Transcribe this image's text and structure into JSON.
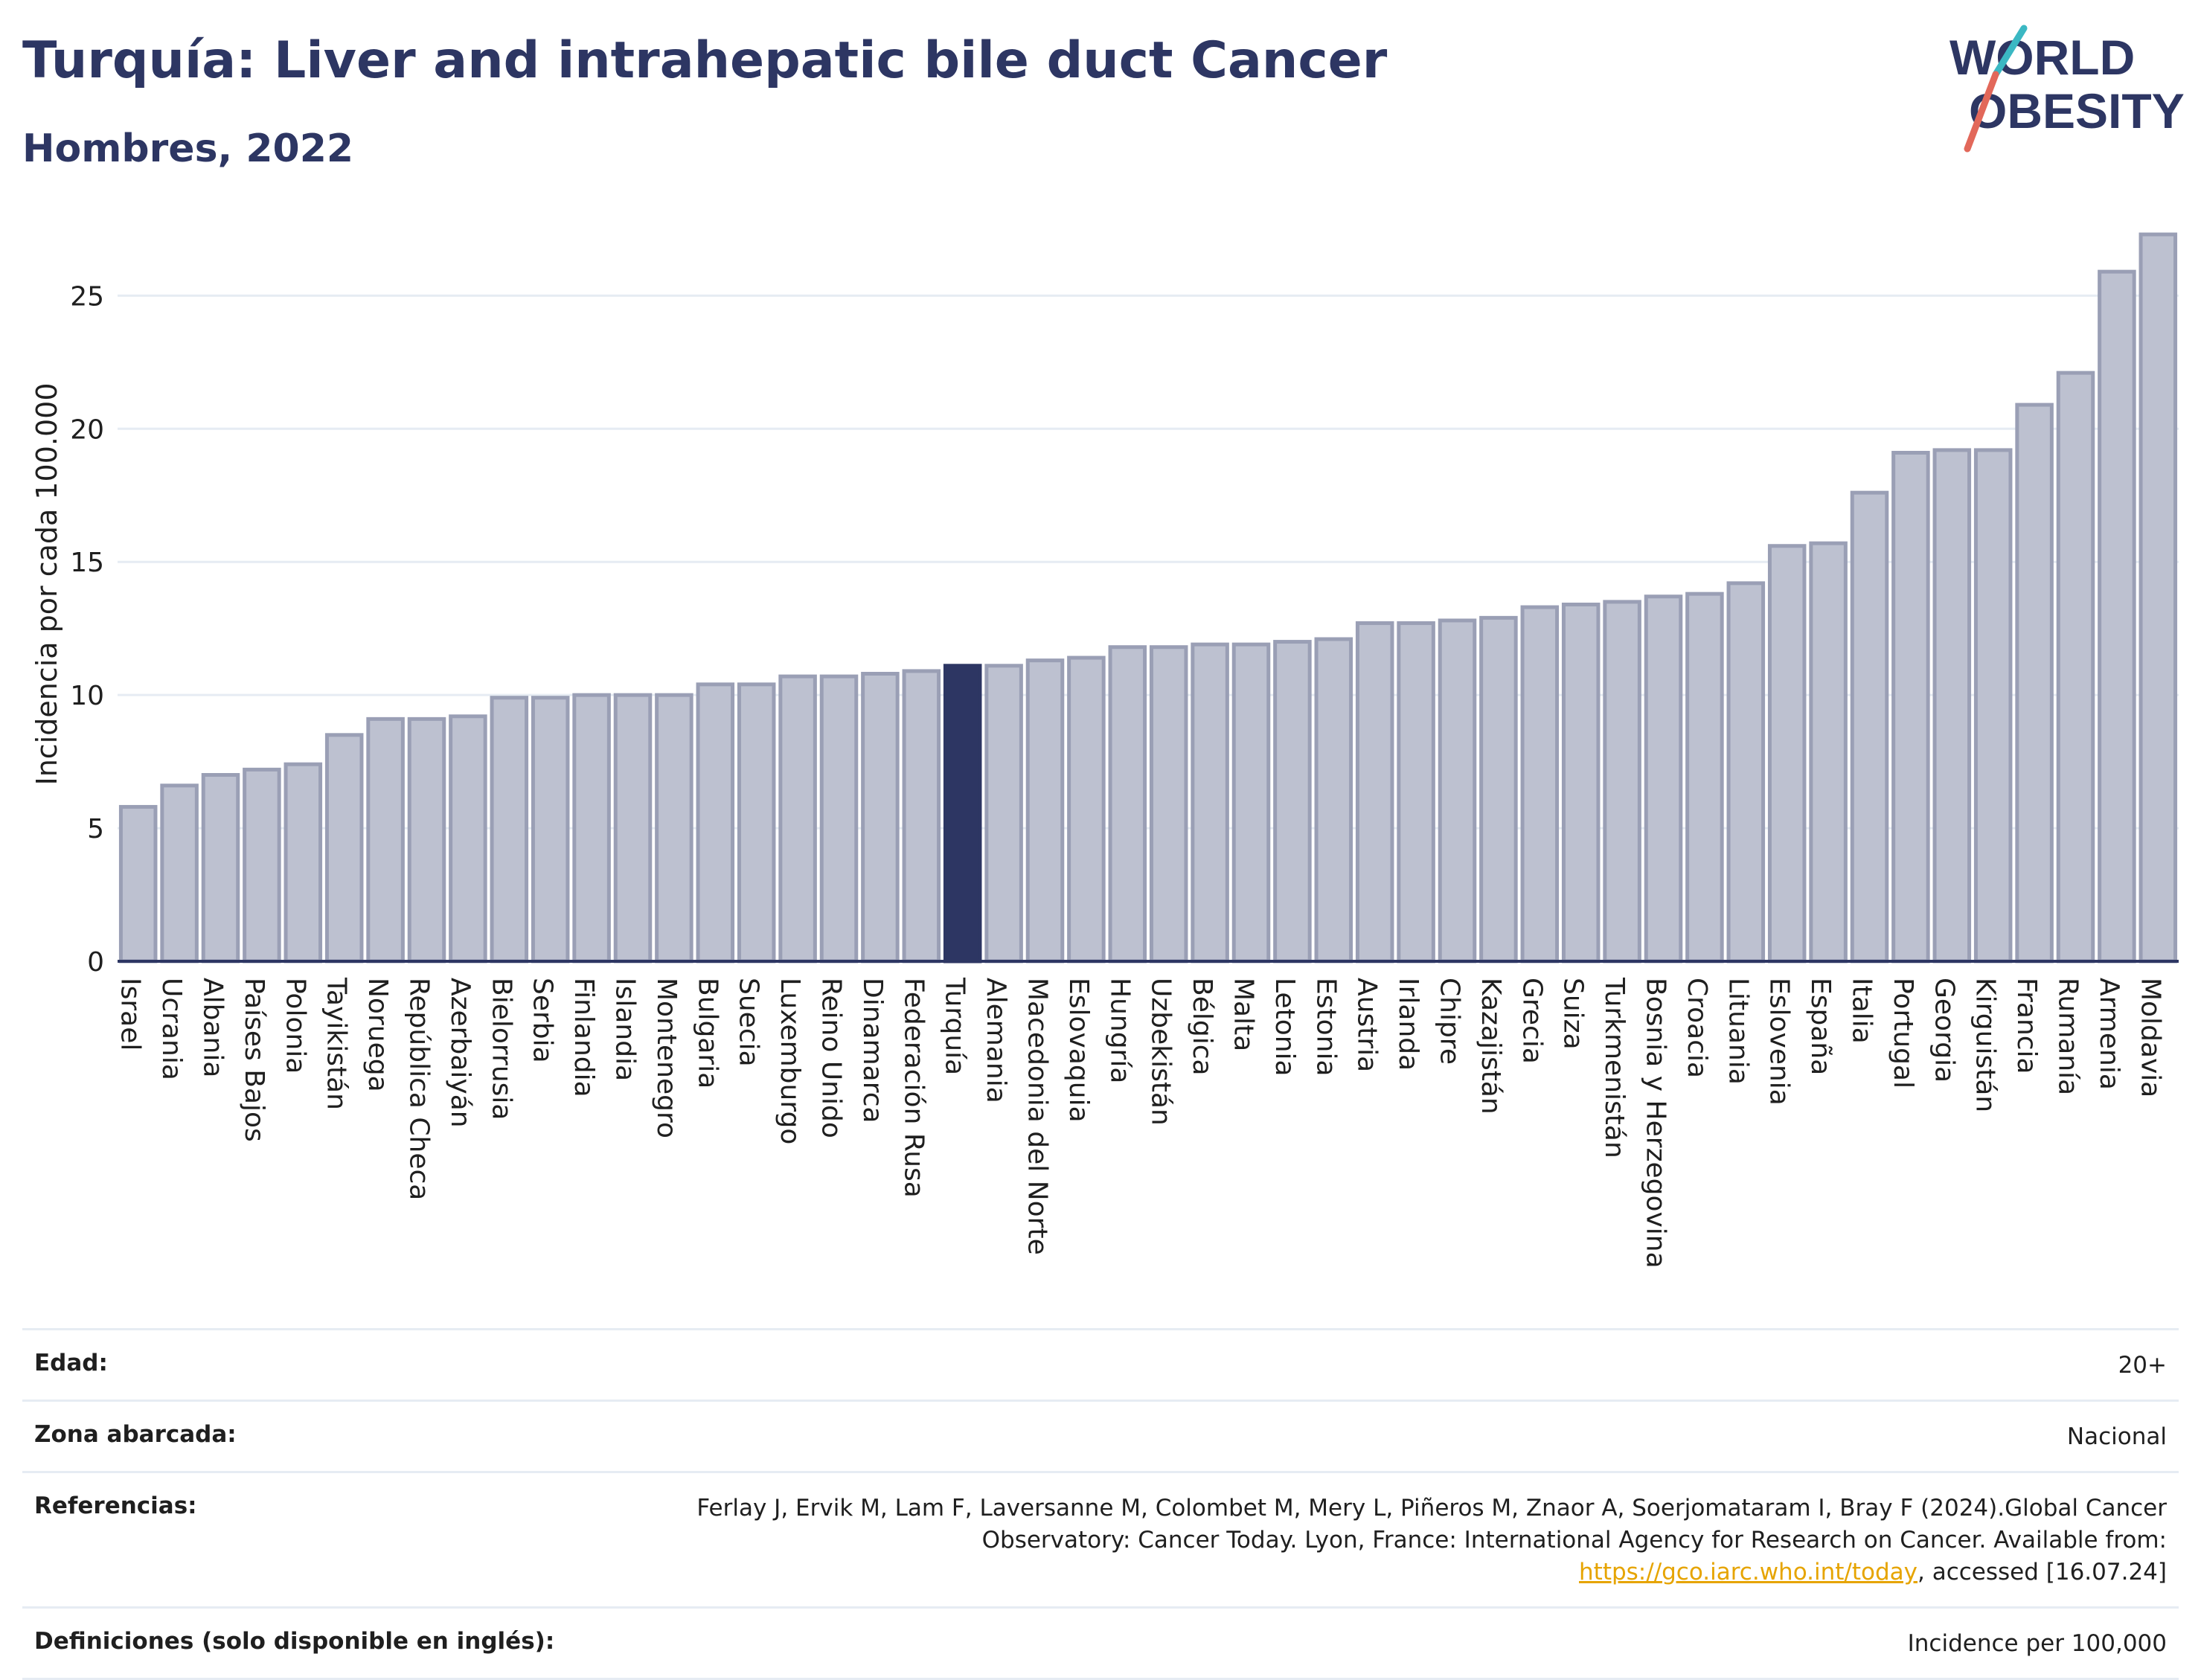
{
  "header": {
    "title": "Turquía: Liver and intrahepatic bile duct Cancer",
    "subtitle": "Hombres, 2022"
  },
  "logo": {
    "line1": "WORLD",
    "line2": "OBESITY"
  },
  "chart_data": {
    "type": "bar",
    "ylabel": "Incidencia por cada 100.000",
    "ylim": [
      0,
      28
    ],
    "yticks": [
      0,
      5,
      10,
      15,
      20,
      25
    ],
    "grid": true,
    "highlight": "Turquía",
    "colors": {
      "bar": "#bdc1d0",
      "bar_border": "#9a9fb5",
      "highlight": "#2d3663",
      "grid": "#e6ecf3"
    },
    "categories": [
      "Israel",
      "Ucrania",
      "Albania",
      "Países Bajos",
      "Polonia",
      "Tayikistán",
      "Noruega",
      "República Checa",
      "Azerbaiyán",
      "Bielorrusia",
      "Serbia",
      "Finlandia",
      "Islandia",
      "Montenegro",
      "Bulgaria",
      "Suecia",
      "Luxemburgo",
      "Reino Unido",
      "Dinamarca",
      "Federación Rusa",
      "Turquía",
      "Alemania",
      "Macedonia del Norte",
      "Eslovaquia",
      "Hungría",
      "Uzbekistán",
      "Bélgica",
      "Malta",
      "Letonia",
      "Estonia",
      "Austria",
      "Irlanda",
      "Chipre",
      "Kazajistán",
      "Grecia",
      "Suiza",
      "Turkmenistán",
      "Bosnia y Herzegovina",
      "Croacia",
      "Lituania",
      "Eslovenia",
      "España",
      "Italia",
      "Portugal",
      "Georgia",
      "Kirguistán",
      "Francia",
      "Rumanía",
      "Armenia",
      "Moldavia"
    ],
    "values": [
      5.8,
      6.6,
      7.0,
      7.2,
      7.4,
      8.5,
      9.1,
      9.1,
      9.2,
      9.9,
      9.9,
      10.0,
      10.0,
      10.0,
      10.4,
      10.4,
      10.7,
      10.7,
      10.8,
      10.9,
      11.1,
      11.1,
      11.3,
      11.4,
      11.8,
      11.8,
      11.9,
      11.9,
      12.0,
      12.1,
      12.7,
      12.7,
      12.8,
      12.9,
      13.3,
      13.4,
      13.5,
      13.7,
      13.8,
      14.2,
      15.6,
      15.7,
      17.6,
      19.1,
      19.2,
      19.2,
      20.9,
      22.1,
      25.9,
      27.3
    ]
  },
  "meta": {
    "age_label": "Edad:",
    "age_value": "20+",
    "area_label": "Zona abarcada:",
    "area_value": "Nacional",
    "ref_label": "Referencias:",
    "ref_text_1": "Ferlay J, Ervik M, Lam F, Laversanne M, Colombet M, Mery L, Piñeros M, Znaor A, Soerjomataram I, Bray F (2024).Global Cancer Observatory: Cancer Today. Lyon, France: International Agency for Research on Cancer. Available from: ",
    "ref_link": "https://gco.iarc.who.int/today",
    "ref_text_2": ", accessed [16.07.24]",
    "def_label": "Definiciones (solo disponible en inglés):",
    "def_value": "Incidence per 100,000"
  }
}
